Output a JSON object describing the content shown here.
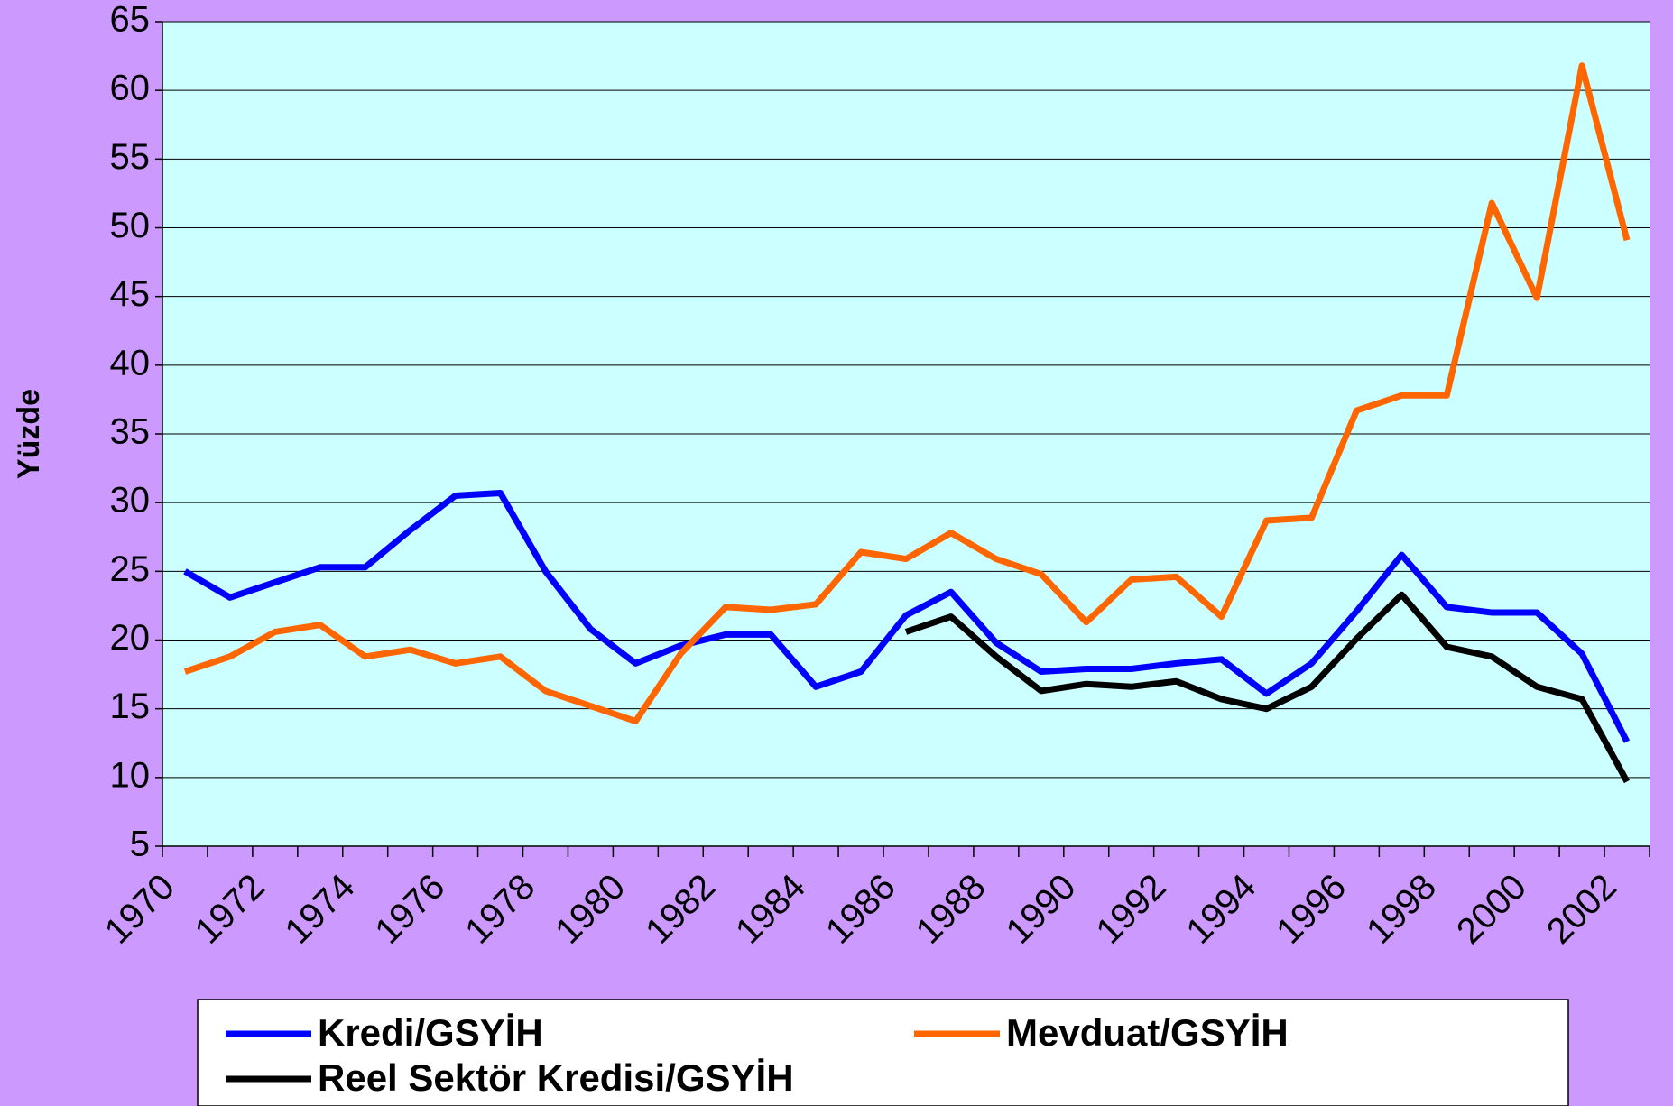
{
  "chart_data": {
    "type": "line",
    "ylabel": "Yüzde",
    "categories": [
      "1970",
      null,
      "1972",
      null,
      "1974",
      null,
      "1976",
      null,
      "1978",
      null,
      "1980",
      null,
      "1982",
      null,
      "1984",
      null,
      "1986",
      null,
      "1988",
      null,
      "1990",
      null,
      "1992",
      null,
      "1994",
      null,
      "1996",
      null,
      "1998",
      null,
      "2000",
      null,
      "2002"
    ],
    "series": [
      {
        "name": "Kredi/GSYİH",
        "color": "#0000ff",
        "values": [
          25,
          23.1,
          24.2,
          25.3,
          25.3,
          28,
          30.5,
          30.7,
          25,
          20.8,
          18.3,
          19.6,
          20.4,
          20.4,
          16.6,
          17.7,
          21.8,
          23.5,
          19.8,
          17.7,
          17.9,
          17.9,
          18.3,
          18.6,
          16.1,
          18.3,
          22.1,
          26.2,
          22.4,
          22.0,
          22.0,
          19.0,
          12.6
        ]
      },
      {
        "name": "Mevduat/GSYİH",
        "color": "#ff6600",
        "values": [
          17.7,
          18.8,
          20.6,
          21.1,
          18.8,
          19.3,
          18.3,
          18.8,
          16.3,
          15.2,
          14.1,
          19.0,
          22.4,
          22.2,
          22.6,
          26.4,
          25.9,
          27.8,
          25.9,
          24.8,
          21.3,
          24.4,
          24.6,
          21.7,
          28.7,
          28.9,
          36.7,
          37.8,
          37.8,
          51.8,
          44.9,
          61.8,
          49.1
        ]
      },
      {
        "name": "Reel Sektör Kredisi/GSYİH",
        "color": "#000000",
        "values": [
          null,
          null,
          null,
          null,
          null,
          null,
          null,
          null,
          null,
          null,
          null,
          null,
          null,
          null,
          null,
          null,
          20.6,
          21.7,
          18.8,
          16.3,
          16.8,
          16.6,
          17.0,
          15.7,
          15.0,
          16.6,
          20.1,
          23.3,
          19.5,
          18.8,
          16.6,
          15.7,
          9.7
        ]
      }
    ],
    "ylim": [
      5,
      65
    ],
    "yticks": [
      5,
      10,
      15,
      20,
      25,
      30,
      35,
      40,
      45,
      50,
      55,
      60,
      65
    ],
    "grid": true
  }
}
